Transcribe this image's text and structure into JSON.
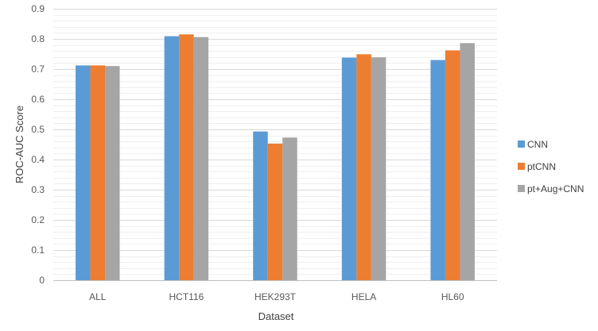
{
  "chart_data": {
    "type": "bar",
    "title": "",
    "xlabel": "Dataset",
    "ylabel": "ROC-AUC Score",
    "ylim": [
      0,
      0.9
    ],
    "ytick_step": 0.1,
    "yticks": [
      "0",
      "0.1",
      "0.2",
      "0.3",
      "0.4",
      "0.5",
      "0.6",
      "0.7",
      "0.8",
      "0.9"
    ],
    "grid": true,
    "legend_position": "right",
    "categories": [
      "ALL",
      "HCT116",
      "HEK293T",
      "HELA",
      "HL60"
    ],
    "series": [
      {
        "name": "CNN",
        "color": "#5b9bd5",
        "values": [
          0.712,
          0.809,
          0.493,
          0.738,
          0.73
        ]
      },
      {
        "name": "ptCNN",
        "color": "#ed7d31",
        "values": [
          0.712,
          0.815,
          0.453,
          0.749,
          0.762
        ]
      },
      {
        "name": "pt+Aug+CNN",
        "color": "#a5a5a5",
        "values": [
          0.71,
          0.806,
          0.473,
          0.739,
          0.786
        ]
      }
    ]
  }
}
